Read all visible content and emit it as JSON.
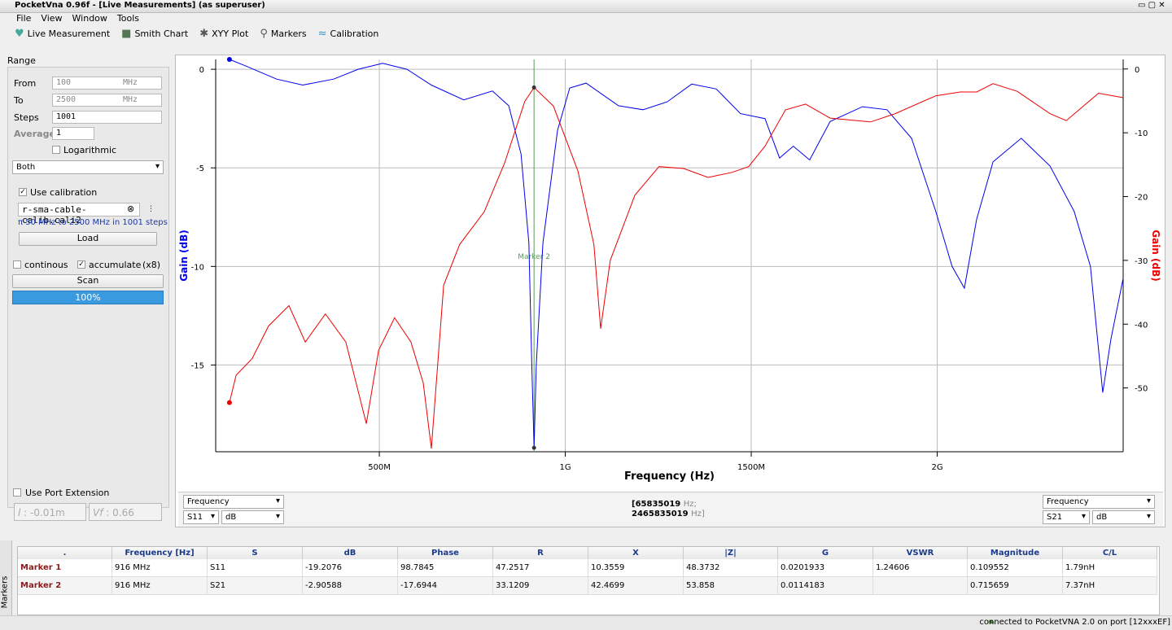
{
  "window": {
    "title": "PocketVna 0.96f - [Live Measurements] (as superuser)"
  },
  "menu": [
    "File",
    "View",
    "Window",
    "Tools"
  ],
  "toolbar": [
    "Live Measurement",
    "Smith Chart",
    "XYY Plot",
    "Markers",
    "Calibration"
  ],
  "range": {
    "title": "Range",
    "from_label": "From",
    "from": "100",
    "from_unit": "MHz",
    "to_label": "To",
    "to": "2500",
    "to_unit": "MHz",
    "steps_label": "Steps",
    "steps": "1001",
    "average_label": "Average",
    "average": "1",
    "logarithmic": "Logarithmic",
    "mode": "Both"
  },
  "calibration": {
    "use": "Use calibration",
    "file": "r-sma-cable-calib.cali2",
    "info": "π 50 MHz to 2500 MHz in 1001 steps",
    "load": "Load"
  },
  "scan": {
    "continous": "continous",
    "accumulate": "accumulate",
    "count": "(x8)",
    "button": "Scan",
    "progress": "100%"
  },
  "port_extension": {
    "label": "Use Port Extension",
    "l_label": "l",
    "l": ": -0.01m",
    "vf_label": "Vf",
    "vf": ": 0.66"
  },
  "chart": {
    "type": "line",
    "x_label": "Frequency (Hz)",
    "y_label": "Gain (dB)",
    "y2_label": "Gain (dB)",
    "xlim": [
      60,
      2500
    ],
    "xticks": [
      {
        "value": 500,
        "label": "500M"
      },
      {
        "value": 1000,
        "label": "1G"
      },
      {
        "value": 1500,
        "label": "1500M"
      },
      {
        "value": 2000,
        "label": "2G"
      }
    ],
    "ylim": [
      -19.4,
      0.5
    ],
    "yticks": [
      0,
      -5,
      -10,
      -15
    ],
    "y2lim": [
      -60,
      1.5
    ],
    "y2ticks": [
      0,
      -10,
      -20,
      -30,
      -40,
      -50
    ],
    "grid": true,
    "series": [
      {
        "color": "#0000ee",
        "x": [
          97,
          137,
          224,
          294,
          377,
          443,
          509,
          574,
          640,
          727,
          804,
          848,
          881,
          902,
          910,
          916,
          922,
          940,
          979,
          1012,
          1056,
          1143,
          1209,
          1274,
          1340,
          1406,
          1471,
          1537,
          1576,
          1613,
          1657,
          1712,
          1799,
          1865,
          1931,
          1996,
          2040,
          2073,
          2106,
          2150,
          2226,
          2303,
          2368,
          2412,
          2445,
          2467,
          2500
        ],
        "values": [
          0.5,
          0.2,
          -0.5,
          -0.8,
          -0.5,
          0,
          0.3,
          0,
          -0.8,
          -1.55,
          -1.1,
          -1.85,
          -4.3,
          -8.8,
          -15,
          -19.2,
          -15,
          -8.8,
          -3.1,
          -0.95,
          -0.7,
          -1.85,
          -2.05,
          -1.65,
          -0.75,
          -1.0,
          -2.25,
          -2.5,
          -4.5,
          -3.9,
          -4.6,
          -2.65,
          -1.9,
          -2.05,
          -3.5,
          -7.2,
          -10,
          -11.1,
          -7.6,
          -4.7,
          -3.5,
          -4.9,
          -7.2,
          -10,
          -16.4,
          -13.7,
          -10.6
        ]
      },
      {
        "color": "#ee0000",
        "axis": "y2",
        "x": [
          97,
          115,
          158,
          202,
          257,
          301,
          355,
          410,
          465,
          498,
          541,
          585,
          618,
          640,
          673,
          716,
          782,
          837,
          891,
          916,
          968,
          1034,
          1077,
          1095,
          1121,
          1187,
          1252,
          1318,
          1384,
          1449,
          1493,
          1537,
          1592,
          1646,
          1712,
          1821,
          1887,
          1996,
          2062,
          2106,
          2150,
          2215,
          2303,
          2347,
          2434,
          2500
        ],
        "values": [
          -52.3,
          -48,
          -45.4,
          -40.3,
          -37.1,
          -42.8,
          -38.4,
          -42.8,
          -55.6,
          -44.1,
          -39,
          -42.8,
          -49.2,
          -59.5,
          -33.9,
          -27.5,
          -22.4,
          -14.7,
          -5.1,
          -2.9,
          -5.8,
          -16,
          -27.5,
          -40.7,
          -30,
          -19.8,
          -15.3,
          -15.6,
          -17,
          -16.2,
          -15.3,
          -12.1,
          -6.4,
          -5.5,
          -7.7,
          -8.3,
          -7,
          -4.2,
          -3.6,
          -3.6,
          -2.3,
          -3.5,
          -7,
          -8.1,
          -3.8,
          -4.5
        ]
      }
    ],
    "marker": {
      "label": "Marker 2",
      "x": 916
    }
  },
  "chart_controls": {
    "left": [
      "Frequency",
      "S11",
      "dB"
    ],
    "range": [
      "[65835019",
      "Hz;",
      "2465835019",
      "Hz]"
    ],
    "right": [
      "Frequency",
      "S21",
      "dB"
    ]
  },
  "markers_table": {
    "tab": "Markers",
    "columns": [
      ".",
      "Frequency [Hz]",
      "S",
      "dB",
      "Phase",
      "R",
      "X",
      "|Z|",
      "G",
      "VSWR",
      "Magnitude",
      "C/L"
    ],
    "rows": [
      [
        "Marker 1",
        "916 MHz",
        "S11",
        "-19.2076",
        "98.7845",
        "47.2517",
        "10.3559",
        "48.3732",
        "0.0201933",
        "1.24606",
        "0.109552",
        "1.79nH"
      ],
      [
        "Marker 2",
        "916 MHz",
        "S21",
        "-2.90588",
        "-17.6944",
        "33.1209",
        "42.4699",
        "53.858",
        "0.0114183",
        null,
        "0.715659",
        "7.37nH"
      ]
    ]
  },
  "status": "connected to PocketVNA 2.0 on port [12xxxEF]"
}
